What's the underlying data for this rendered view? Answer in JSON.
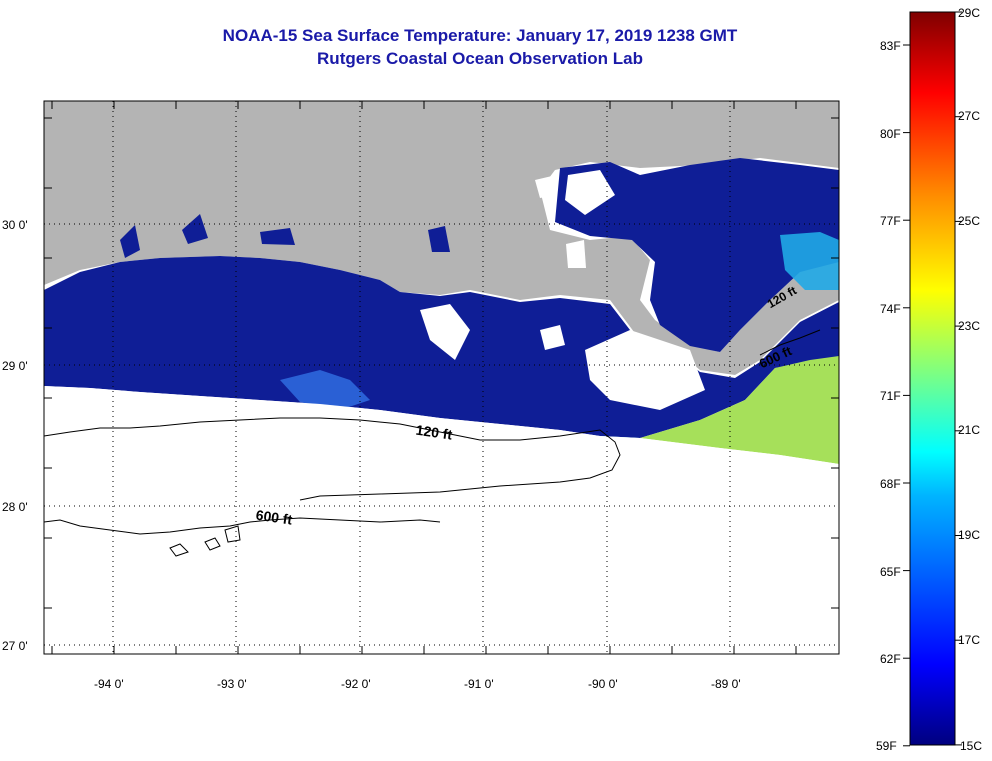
{
  "header": {
    "title": "NOAA-15 Sea Surface Temperature:  January 17, 2019 1238 GMT",
    "subtitle": "Rutgers Coastal Ocean Observation Lab"
  },
  "map": {
    "lat_labels": [
      "30 0'",
      "29 0'",
      "28 0'",
      "27 0'"
    ],
    "lon_labels": [
      "-94 0'",
      "-93 0'",
      "-92 0'",
      "-91 0'",
      "-90 0'",
      "-89 0'"
    ],
    "contours": [
      {
        "label": "120 ft"
      },
      {
        "label": "600 ft"
      },
      {
        "label": "600 ft"
      },
      {
        "label": "120 ft"
      }
    ],
    "colors": {
      "land": "#b4b4b4",
      "cold_water": "#0f1e96",
      "warm_water": "#a6e05a",
      "no_data": "#ffffff"
    }
  },
  "colorbar": {
    "fahrenheit_labels": [
      "83F",
      "80F",
      "77F",
      "74F",
      "71F",
      "68F",
      "65F",
      "62F",
      "59F"
    ],
    "celsius_labels": [
      "29C",
      "27C",
      "25C",
      "23C",
      "21C",
      "19C",
      "17C",
      "15C"
    ],
    "min_c": 15,
    "max_c": 29
  }
}
